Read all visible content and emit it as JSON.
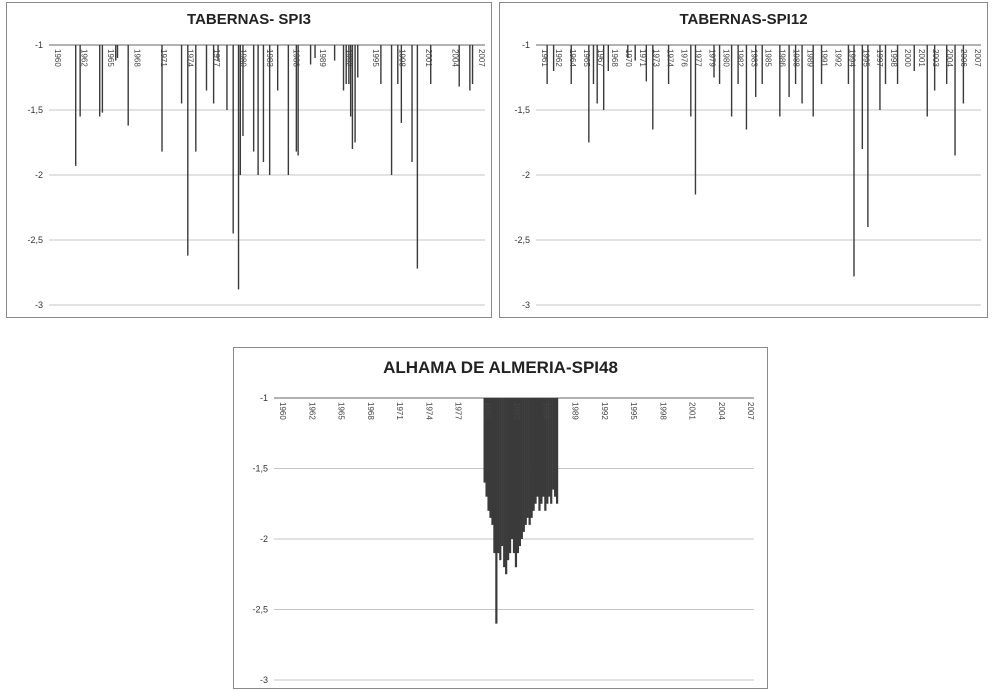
{
  "chart_data": [
    {
      "type": "bar",
      "title": "TABERNAS- SPI3",
      "xlabel": "",
      "ylabel": "",
      "ylim": [
        -3,
        -1
      ],
      "yticks": [
        "-1",
        "-1,5",
        "-2",
        "-2,5",
        "-3"
      ],
      "grid": true,
      "xtick_labels": [
        "1960",
        "1962",
        "1965",
        "1968",
        "1971",
        "1974",
        "1977",
        "1980",
        "1983",
        "1986",
        "1989",
        "1992",
        "1995",
        "1998",
        "2001",
        "2004",
        "2007"
      ],
      "series": [
        {
          "color": "#3a3a3a",
          "x": [
            1962.5,
            1963.0,
            1965.2,
            1965.5,
            1967.0,
            1967.2,
            1968.4,
            1972.2,
            1974.4,
            1975.1,
            1976.0,
            1977.2,
            1978.0,
            1978.5,
            1979.5,
            1980.2,
            1980.8,
            1981.0,
            1981.3,
            1982.5,
            1983.0,
            1983.6,
            1984.3,
            1985.2,
            1986.4,
            1987.3,
            1987.5,
            1988.9,
            1989.4,
            1991.6,
            1992.6,
            1992.9,
            1993.2,
            1993.4,
            1993.6,
            1993.9,
            1994.2,
            1996.8,
            1998.0,
            1998.7,
            1999.1,
            2000.3,
            2000.9,
            2002.4,
            2005.6,
            2006.8,
            2007.1
          ],
          "values": [
            -1.93,
            -1.55,
            -1.55,
            -1.52,
            -1.12,
            -1.1,
            -1.62,
            -1.82,
            -1.45,
            -2.62,
            -1.82,
            -1.35,
            -1.45,
            -1.12,
            -1.5,
            -2.45,
            -2.88,
            -2.0,
            -1.7,
            -1.82,
            -2.0,
            -1.9,
            -2.0,
            -1.35,
            -2.0,
            -1.82,
            -1.85,
            -1.15,
            -1.1,
            -1.12,
            -1.35,
            -1.3,
            -1.3,
            -1.55,
            -1.8,
            -1.75,
            -1.25,
            -1.3,
            -2.0,
            -1.3,
            -1.6,
            -1.9,
            -2.72,
            -1.3,
            -1.32,
            -1.35,
            -1.3
          ]
        }
      ]
    },
    {
      "type": "bar",
      "title": "TABERNAS-SPI12",
      "xlabel": "",
      "ylabel": "",
      "ylim": [
        -3,
        -1
      ],
      "yticks": [
        "-1",
        "-1,5",
        "-2",
        "-2,5",
        "-3"
      ],
      "grid": true,
      "xtick_labels": [
        "1961",
        "1962",
        "1964",
        "1965",
        "1967",
        "1968",
        "1970",
        "1971",
        "1973",
        "1974",
        "1976",
        "1977",
        "1979",
        "1980",
        "1982",
        "1983",
        "1985",
        "1986",
        "1988",
        "1989",
        "1991",
        "1992",
        "1994",
        "1995",
        "1997",
        "1998",
        "2000",
        "2001",
        "2003",
        "2004",
        "2006",
        "2007"
      ],
      "series": [
        {
          "color": "#3a3a3a",
          "x": [
            1961.7,
            1962.4,
            1964.3,
            1966.2,
            1966.7,
            1967.1,
            1967.8,
            1968.3,
            1970.4,
            1971.2,
            1972.4,
            1973.1,
            1974.8,
            1977.2,
            1977.7,
            1979.7,
            1980.3,
            1981.6,
            1982.3,
            1983.2,
            1984.2,
            1984.9,
            1986.8,
            1987.8,
            1988.5,
            1989.2,
            1990.4,
            1991.3,
            1994.2,
            1994.8,
            1995.7,
            1996.3,
            1997.6,
            1998.2,
            1999.5,
            2001.3,
            2002.7,
            2003.5,
            2004.8,
            2005.7,
            2006.6
          ],
          "values": [
            -1.3,
            -1.2,
            -1.3,
            -1.75,
            -1.3,
            -1.45,
            -1.5,
            -1.2,
            -1.1,
            -1.12,
            -1.28,
            -1.65,
            -1.3,
            -1.55,
            -2.15,
            -1.25,
            -1.3,
            -1.55,
            -1.3,
            -1.65,
            -1.4,
            -1.3,
            -1.55,
            -1.4,
            -1.3,
            -1.45,
            -1.55,
            -1.3,
            -1.3,
            -2.78,
            -1.8,
            -2.4,
            -1.5,
            -1.3,
            -1.3,
            -1.2,
            -1.55,
            -1.35,
            -1.3,
            -1.85,
            -1.45
          ]
        }
      ]
    },
    {
      "type": "bar",
      "title": "ALHAMA DE ALMERIA-SPI48",
      "xlabel": "",
      "ylabel": "",
      "ylim": [
        -3,
        -1
      ],
      "yticks": [
        "-1",
        "-1,5",
        "-2",
        "-2,5",
        "-3"
      ],
      "grid": true,
      "xtick_labels": [
        "1960",
        "1962",
        "1965",
        "1968",
        "1971",
        "1974",
        "1977",
        "1980",
        "1983",
        "1986",
        "1989",
        "1992",
        "1995",
        "1998",
        "2001",
        "2004",
        "2007"
      ],
      "series": [
        {
          "color": "#3a3a3a",
          "x": [
            1981.0,
            1981.2,
            1981.4,
            1981.6,
            1981.8,
            1982.0,
            1982.2,
            1982.4,
            1982.6,
            1982.8,
            1983.0,
            1983.2,
            1983.4,
            1983.6,
            1983.8,
            1984.0,
            1984.2,
            1984.4,
            1984.6,
            1984.8,
            1985.0,
            1985.2,
            1985.4,
            1985.6,
            1985.8,
            1986.0,
            1986.2,
            1986.4,
            1986.6,
            1986.8,
            1987.0,
            1987.2,
            1987.4,
            1987.6,
            1987.8,
            1988.0,
            1988.2,
            1988.4
          ],
          "values": [
            -1.6,
            -1.7,
            -1.8,
            -1.85,
            -1.9,
            -2.1,
            -2.6,
            -2.1,
            -2.15,
            -2.05,
            -2.2,
            -2.25,
            -2.15,
            -2.1,
            -2.0,
            -2.1,
            -2.2,
            -2.1,
            -2.05,
            -2.0,
            -1.95,
            -1.9,
            -1.85,
            -1.9,
            -1.85,
            -1.8,
            -1.75,
            -1.7,
            -1.8,
            -1.75,
            -1.7,
            -1.8,
            -1.75,
            -1.7,
            -1.75,
            -1.65,
            -1.7,
            -1.75
          ]
        }
      ]
    }
  ],
  "colors": {
    "grid": "#b0b0b0",
    "axis": "#999999",
    "bar": "#3a3a3a",
    "background": "#ffffff"
  }
}
